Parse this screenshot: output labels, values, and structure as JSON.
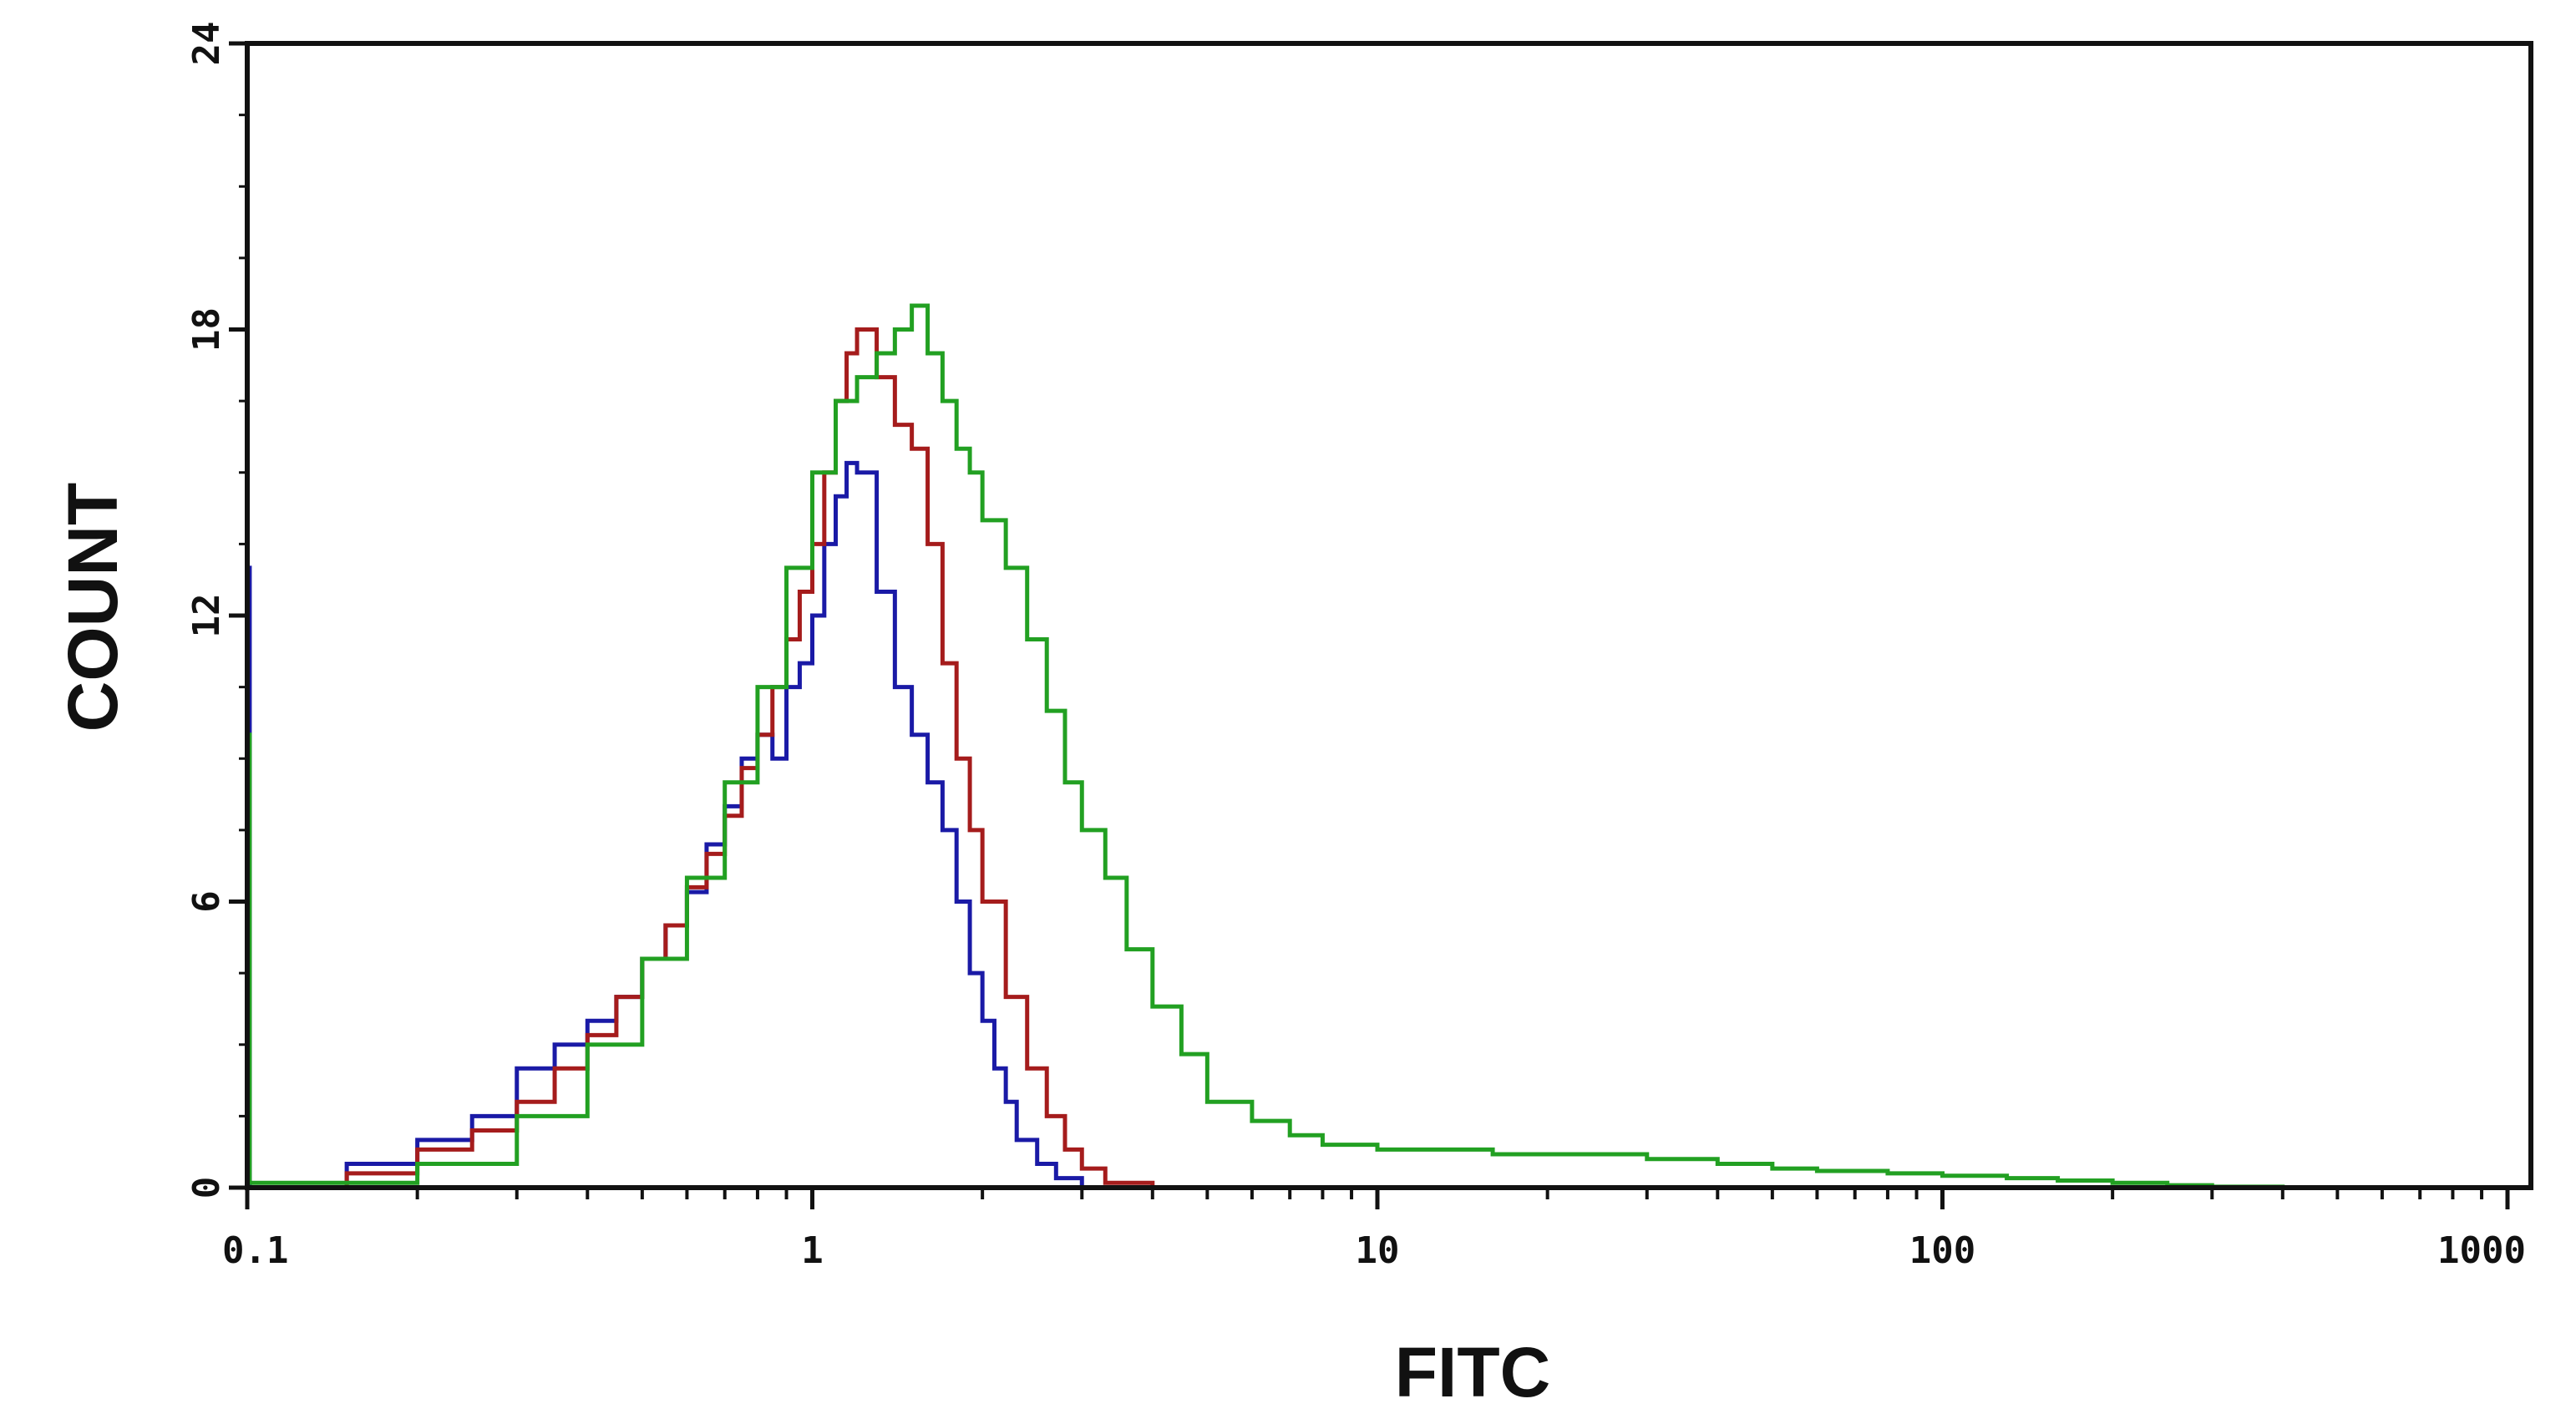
{
  "chart_data": {
    "type": "line",
    "title": "",
    "xlabel": "FITC",
    "ylabel": "COUNT",
    "x_scale": "log",
    "xlim": [
      0.1,
      1100
    ],
    "ylim": [
      0,
      24
    ],
    "x_ticks": [
      {
        "value": 0.1,
        "label": "0.1"
      },
      {
        "value": 1,
        "label": "1"
      },
      {
        "value": 10,
        "label": "10"
      },
      {
        "value": 100,
        "label": "100"
      },
      {
        "value": 1000,
        "label": "1000"
      }
    ],
    "y_ticks": [
      {
        "value": 0,
        "label": "0"
      },
      {
        "value": 6,
        "label": "6"
      },
      {
        "value": 12,
        "label": "12"
      },
      {
        "value": 18,
        "label": "18"
      },
      {
        "value": 24,
        "label": "24"
      }
    ],
    "grid": false,
    "legend": "none",
    "series": [
      {
        "color": "#1a1aa6",
        "x": [
          0.1,
          0.101,
          0.15,
          0.2,
          0.25,
          0.3,
          0.35,
          0.4,
          0.45,
          0.5,
          0.55,
          0.6,
          0.65,
          0.7,
          0.75,
          0.8,
          0.85,
          0.9,
          0.95,
          1.0,
          1.05,
          1.1,
          1.15,
          1.2,
          1.3,
          1.4,
          1.5,
          1.6,
          1.7,
          1.8,
          1.9,
          2.0,
          2.1,
          2.2,
          2.3,
          2.5,
          2.7,
          3.0,
          17.0,
          1100
        ],
        "y": [
          13,
          0,
          0.5,
          1.0,
          1.5,
          2.5,
          3.0,
          3.5,
          4.0,
          4.8,
          5.5,
          6.2,
          7.2,
          8.0,
          9.0,
          9.5,
          9.0,
          10.5,
          11.0,
          12.0,
          13.5,
          14.5,
          15.2,
          15.0,
          12.5,
          10.5,
          9.5,
          8.5,
          7.5,
          6.0,
          4.5,
          3.5,
          2.5,
          1.8,
          1.0,
          0.5,
          0.2,
          0,
          0,
          0
        ]
      },
      {
        "color": "#a51c1c",
        "x": [
          0.1,
          0.15,
          0.2,
          0.25,
          0.3,
          0.35,
          0.4,
          0.45,
          0.5,
          0.55,
          0.6,
          0.65,
          0.7,
          0.75,
          0.8,
          0.85,
          0.9,
          0.95,
          1.0,
          1.05,
          1.1,
          1.15,
          1.2,
          1.3,
          1.4,
          1.5,
          1.6,
          1.7,
          1.8,
          1.9,
          2.0,
          2.2,
          2.4,
          2.6,
          2.8,
          3.0,
          3.3,
          4.0,
          1100
        ],
        "y": [
          0,
          0.3,
          0.8,
          1.2,
          1.8,
          2.5,
          3.2,
          4.0,
          4.8,
          5.5,
          6.3,
          7.0,
          7.8,
          8.8,
          9.5,
          10.5,
          11.5,
          12.5,
          13.5,
          15.0,
          16.5,
          17.5,
          18.0,
          17.0,
          16.0,
          15.5,
          13.5,
          11.0,
          9.0,
          7.5,
          6.0,
          4.0,
          2.5,
          1.5,
          0.8,
          0.4,
          0.1,
          0,
          0
        ]
      },
      {
        "color": "#22a022",
        "x": [
          0.1,
          0.101,
          0.2,
          0.3,
          0.4,
          0.5,
          0.6,
          0.7,
          0.8,
          0.9,
          1.0,
          1.1,
          1.2,
          1.3,
          1.4,
          1.5,
          1.6,
          1.7,
          1.8,
          1.9,
          2.0,
          2.2,
          2.4,
          2.6,
          2.8,
          3.0,
          3.3,
          3.6,
          4.0,
          4.5,
          5.0,
          6.0,
          7.0,
          8.0,
          10.0,
          13.0,
          16.0,
          20.0,
          25.0,
          30.0,
          40.0,
          50.0,
          60.0,
          80.0,
          100.0,
          130.0,
          160.0,
          200.0,
          250.0,
          300.0,
          400.0,
          600.0,
          1100
        ],
        "y": [
          9.5,
          0.1,
          0.5,
          1.5,
          3.0,
          4.8,
          6.5,
          8.5,
          10.5,
          13.0,
          15.0,
          16.5,
          17.0,
          17.5,
          18.0,
          18.5,
          17.5,
          16.5,
          15.5,
          15.0,
          14.0,
          13.0,
          11.5,
          10.0,
          8.5,
          7.5,
          6.5,
          5.0,
          3.8,
          2.8,
          1.8,
          1.4,
          1.1,
          0.9,
          0.8,
          0.8,
          0.7,
          0.7,
          0.7,
          0.6,
          0.5,
          0.4,
          0.35,
          0.3,
          0.25,
          0.2,
          0.15,
          0.1,
          0.05,
          0.02,
          0,
          0,
          0
        ]
      }
    ]
  }
}
